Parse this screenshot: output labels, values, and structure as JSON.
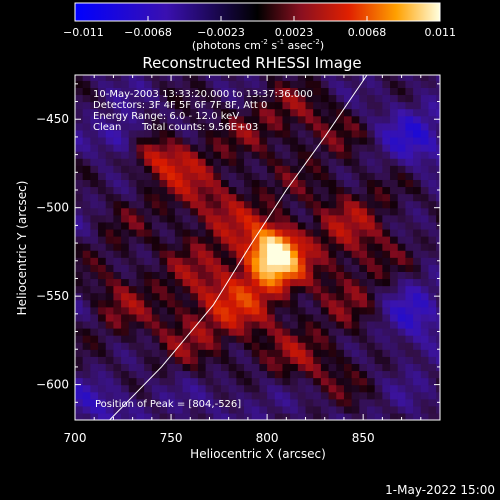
{
  "chart_data": {
    "type": "heatmap",
    "title": "Reconstructed RHESSI Image",
    "xlabel": "Heliocentric X (arcsec)",
    "ylabel": "Heliocentric Y (arcsec)",
    "xlim": [
      700,
      890
    ],
    "ylim": [
      -620,
      -425
    ],
    "x_ticks": [
      700,
      750,
      800,
      850
    ],
    "y_ticks": [
      -450,
      -500,
      -550,
      -600
    ],
    "colorbar": {
      "ticks": [
        "-0.011",
        "-0.0068",
        "-0.0023",
        "0.0023",
        "0.0068",
        "0.011"
      ],
      "label_main": "(photons cm",
      "label_exp1": "-2",
      "label_mid1": " s",
      "label_exp2": "-1",
      "label_mid2": " asec",
      "label_exp3": "-2",
      "label_end": ")",
      "range": [
        -0.011,
        0.011
      ]
    },
    "annotations": {
      "time": "10-May-2003 13:33:20.000 to 13:37:36.000",
      "detectors": "Detectors: 3F 4F 5F 6F 7F 8F, Att 0",
      "energy": "Energy Range: 6.0 - 12.0 keV",
      "clean": "Clean",
      "counts": "Total counts: 9.56E+03",
      "peak": "Position of Peak = [804,-526]"
    },
    "peak": {
      "x": 804,
      "y": -526,
      "value": 0.011
    },
    "limb_curve": [
      [
        718,
        -620
      ],
      [
        745,
        -590
      ],
      [
        772,
        -555
      ],
      [
        792,
        -520
      ],
      [
        810,
        -490
      ],
      [
        830,
        -460
      ],
      [
        852,
        -425
      ]
    ],
    "blobs": [
      {
        "x": 804,
        "y": -526,
        "sx": 9,
        "sy": 11,
        "v": 0.0115
      },
      {
        "x": 790,
        "y": -545,
        "sx": 18,
        "sy": 22,
        "v": 0.0045
      },
      {
        "x": 770,
        "y": -495,
        "sx": 22,
        "sy": 18,
        "v": 0.004
      },
      {
        "x": 745,
        "y": -470,
        "sx": 14,
        "sy": 10,
        "v": 0.005
      },
      {
        "x": 810,
        "y": -450,
        "sx": 25,
        "sy": 14,
        "v": 0.0035
      },
      {
        "x": 845,
        "y": -520,
        "sx": 22,
        "sy": 35,
        "v": 0.004
      },
      {
        "x": 760,
        "y": -560,
        "sx": 20,
        "sy": 22,
        "v": 0.0035
      },
      {
        "x": 820,
        "y": -590,
        "sx": 22,
        "sy": 14,
        "v": 0.003
      },
      {
        "x": 720,
        "y": -545,
        "sx": 12,
        "sy": 30,
        "v": 0.0025
      },
      {
        "x": 725,
        "y": -460,
        "sx": 8,
        "sy": 8,
        "v": -0.005
      },
      {
        "x": 875,
        "y": -460,
        "sx": 15,
        "sy": 15,
        "v": -0.004
      },
      {
        "x": 875,
        "y": -560,
        "sx": 12,
        "sy": 18,
        "v": -0.004
      },
      {
        "x": 715,
        "y": -610,
        "sx": 15,
        "sy": 10,
        "v": -0.003
      },
      {
        "x": 790,
        "y": -605,
        "sx": 16,
        "sy": 10,
        "v": -0.002
      }
    ],
    "grid": false
  },
  "footer": {
    "timestamp": "1-May-2022 15:00"
  }
}
